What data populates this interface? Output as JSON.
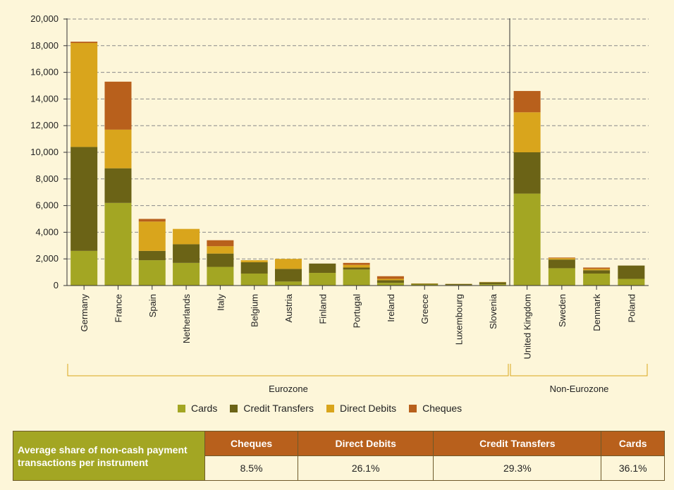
{
  "chart_data": {
    "type": "bar",
    "stacked": true,
    "categories": [
      "Germany",
      "France",
      "Spain",
      "Netherlands",
      "Italy",
      "Belgium",
      "Austria",
      "Finland",
      "Portugal",
      "Ireland",
      "Greece",
      "Luxembourg",
      "Slovenia",
      "United Kingdom",
      "Sweden",
      "Denmark",
      "Poland"
    ],
    "groups": [
      {
        "label": "Eurozone",
        "categories": [
          "Germany",
          "France",
          "Spain",
          "Netherlands",
          "Italy",
          "Belgium",
          "Austria",
          "Finland",
          "Portugal",
          "Ireland",
          "Greece",
          "Luxembourg",
          "Slovenia"
        ]
      },
      {
        "label": "Non-Eurozone",
        "categories": [
          "United Kingdom",
          "Sweden",
          "Denmark",
          "Poland"
        ]
      }
    ],
    "series": [
      {
        "name": "Cards",
        "color": "#a3a623",
        "values": [
          2600,
          6200,
          1900,
          1700,
          1400,
          900,
          300,
          950,
          1200,
          200,
          80,
          40,
          100,
          6900,
          1300,
          900,
          500
        ]
      },
      {
        "name": "Credit Transfers",
        "color": "#6b6316",
        "values": [
          7800,
          2600,
          700,
          1400,
          1000,
          850,
          950,
          700,
          150,
          200,
          60,
          80,
          150,
          3100,
          650,
          250,
          1000
        ]
      },
      {
        "name": "Direct Debits",
        "color": "#d9a51c",
        "values": [
          7800,
          2900,
          2200,
          1150,
          550,
          150,
          750,
          0,
          200,
          100,
          20,
          10,
          20,
          3000,
          100,
          100,
          0
        ]
      },
      {
        "name": "Cheques",
        "color": "#b8601c",
        "values": [
          100,
          3600,
          200,
          0,
          450,
          0,
          0,
          0,
          150,
          200,
          0,
          0,
          0,
          1600,
          50,
          100,
          0
        ]
      }
    ],
    "ylim": [
      0,
      20000
    ],
    "yticks": [
      "0",
      "2,000",
      "4,000",
      "6,000",
      "8,000",
      "10,000",
      "12,000",
      "14,000",
      "16,000",
      "18,000",
      "20,000"
    ],
    "grid": true,
    "legend_position": "bottom"
  },
  "table": {
    "title": "Average share of non-cash payment transactions per instrument",
    "headers": [
      "Cheques",
      "Direct Debits",
      "Credit Transfers",
      "Cards"
    ],
    "values": [
      "8.5%",
      "26.1%",
      "29.3%",
      "36.1%"
    ]
  }
}
